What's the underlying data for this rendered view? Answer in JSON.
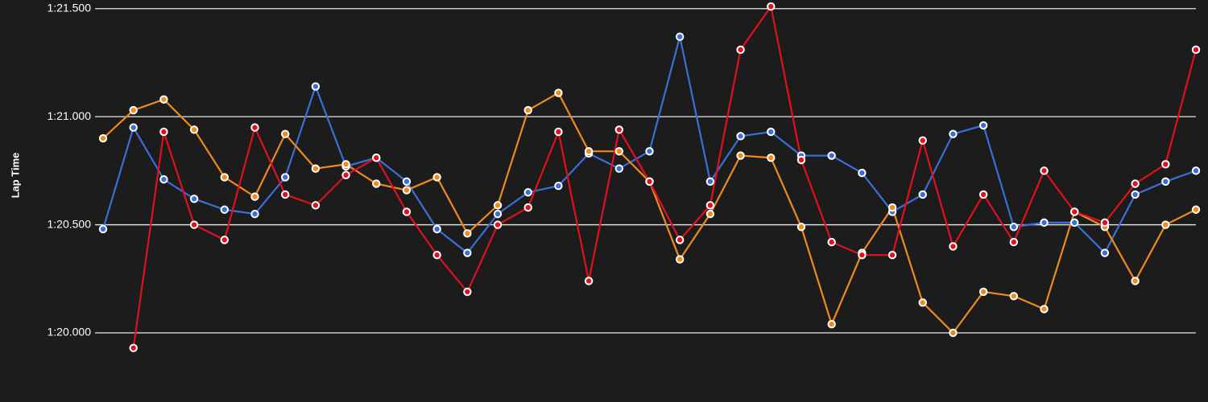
{
  "chart_data": {
    "type": "line",
    "y_label": "Lap Time",
    "categories": [
      null,
      null,
      null,
      null,
      null,
      null,
      null,
      null,
      null,
      null,
      null,
      null,
      null,
      null,
      null,
      null,
      null,
      null,
      null,
      null,
      null,
      null,
      null,
      null,
      null,
      null,
      null,
      null,
      null,
      null,
      null,
      null,
      null,
      null,
      null,
      null,
      null
    ],
    "series": [
      {
        "color": "#3a6fd8",
        "values": [
          80.48,
          80.95,
          80.71,
          80.62,
          80.57,
          80.55,
          80.72,
          81.14,
          80.77,
          80.81,
          80.7,
          80.48,
          80.37,
          80.55,
          80.65,
          80.68,
          80.83,
          80.76,
          80.84,
          81.37,
          80.7,
          80.91,
          80.93,
          80.82,
          80.82,
          80.74,
          80.56,
          80.64,
          80.92,
          80.96,
          80.49,
          80.51,
          80.51,
          80.37,
          80.64,
          80.7,
          80.75
        ]
      },
      {
        "color": "#f08a1c",
        "values": [
          80.9,
          81.03,
          81.08,
          80.94,
          80.72,
          80.63,
          80.92,
          80.76,
          80.78,
          80.69,
          80.66,
          80.72,
          80.46,
          80.59,
          81.03,
          81.11,
          80.84,
          80.84,
          80.7,
          80.34,
          80.55,
          80.82,
          80.81,
          80.49,
          80.04,
          80.37,
          80.58,
          80.14,
          80.0,
          80.19,
          80.17,
          80.11,
          80.56,
          80.49,
          80.24,
          80.5,
          80.57
        ]
      },
      {
        "color": "#e0101e",
        "values": [
          null,
          79.93,
          80.93,
          80.5,
          80.43,
          80.95,
          80.64,
          80.59,
          80.73,
          80.81,
          80.56,
          80.36,
          80.19,
          80.5,
          80.58,
          80.93,
          80.24,
          80.94,
          80.7,
          80.43,
          80.59,
          81.31,
          81.51,
          80.8,
          80.42,
          80.36,
          80.36,
          80.89,
          80.4,
          80.64,
          80.42,
          80.75,
          80.56,
          80.51,
          80.69,
          80.78,
          81.31
        ]
      }
    ],
    "ylim": [
      79.68,
      81.54
    ],
    "yticks": [
      {
        "value": 80.0,
        "label": "1:20.000"
      },
      {
        "value": 80.5,
        "label": "1:20.500"
      },
      {
        "value": 81.0,
        "label": "1:21.000"
      },
      {
        "value": 81.5,
        "label": "1:21.500"
      }
    ],
    "grid": true
  }
}
